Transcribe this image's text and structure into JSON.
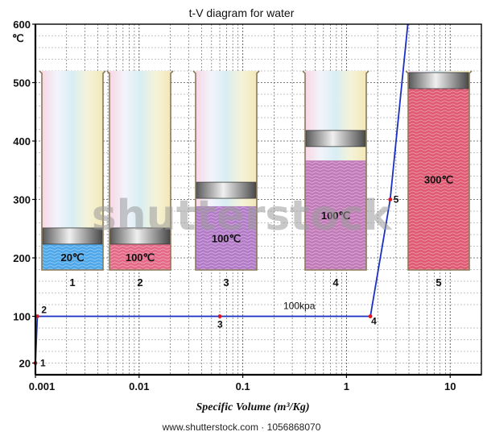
{
  "chart_data": {
    "type": "line",
    "title": "t-V diagram for water",
    "xlabel": "Specific Volume (m³/Kg)",
    "ylabel": "℃",
    "x_scale": "log",
    "xlim": [
      0.001,
      20
    ],
    "ylim": [
      0,
      600
    ],
    "x_ticks": [
      {
        "value": 0.001,
        "label": "0.001"
      },
      {
        "value": 0.01,
        "label": "0.01"
      },
      {
        "value": 0.1,
        "label": "0.1"
      },
      {
        "value": 1,
        "label": "1"
      },
      {
        "value": 10,
        "label": "10"
      }
    ],
    "y_ticks": [
      {
        "value": 20,
        "label": "20"
      },
      {
        "value": 100,
        "label": "100"
      },
      {
        "value": 200,
        "label": "200"
      },
      {
        "value": 300,
        "label": "300"
      },
      {
        "value": 400,
        "label": "400"
      },
      {
        "value": 500,
        "label": "500"
      },
      {
        "value": 600,
        "label": "600"
      }
    ],
    "grid": true,
    "line_color": "#1a2fc4",
    "point_color": "#e0141e",
    "series": [
      {
        "name": "100kpa",
        "points": [
          {
            "x": 0.001,
            "y": 0
          },
          {
            "x": 0.001,
            "y": 20
          },
          {
            "x": 0.001043,
            "y": 100
          },
          {
            "x": 0.06,
            "y": 100
          },
          {
            "x": 1.7,
            "y": 100
          },
          {
            "x": 2.64,
            "y": 300
          },
          {
            "x": 3.9,
            "y": 600
          }
        ]
      }
    ],
    "state_points": [
      {
        "label": "1",
        "x": 0.001,
        "y": 20
      },
      {
        "label": "2",
        "x": 0.001043,
        "y": 100
      },
      {
        "label": "3",
        "x": 0.06,
        "y": 100
      },
      {
        "label": "4",
        "x": 1.7,
        "y": 100
      },
      {
        "label": "5",
        "x": 2.64,
        "y": 300
      }
    ],
    "annotations": [
      {
        "text": "100kpa",
        "x": 0.35,
        "y": 110
      }
    ]
  },
  "cylinders": [
    {
      "number": "1",
      "temperature": "20℃",
      "piston_level": 0.13,
      "fill_color": "#4fa8ea",
      "fill_top": 0.13
    },
    {
      "number": "2",
      "temperature": "100℃",
      "piston_level": 0.13,
      "fill_color": "#e46a88",
      "fill_top": 0.13
    },
    {
      "number": "3",
      "temperature": "100℃",
      "piston_level": 0.36,
      "fill_color": "#b37ac8",
      "fill_top": 0.32
    },
    {
      "number": "4",
      "temperature": "100℃",
      "piston_level": 0.62,
      "fill_color": "#c27ab8",
      "fill_top": 0.55
    },
    {
      "number": "5",
      "temperature": "300℃",
      "piston_level": 1.0,
      "fill_color": "#e05a74",
      "fill_top": 0.95
    }
  ],
  "watermark": {
    "text": "shutterstock"
  },
  "footer": {
    "text": "www.shutterstock.com · 1056868070"
  },
  "colors": {
    "axis": "#000000",
    "grid": "#555555",
    "glass_border": "#8a7a5a",
    "piston": "#6e6e6e"
  }
}
